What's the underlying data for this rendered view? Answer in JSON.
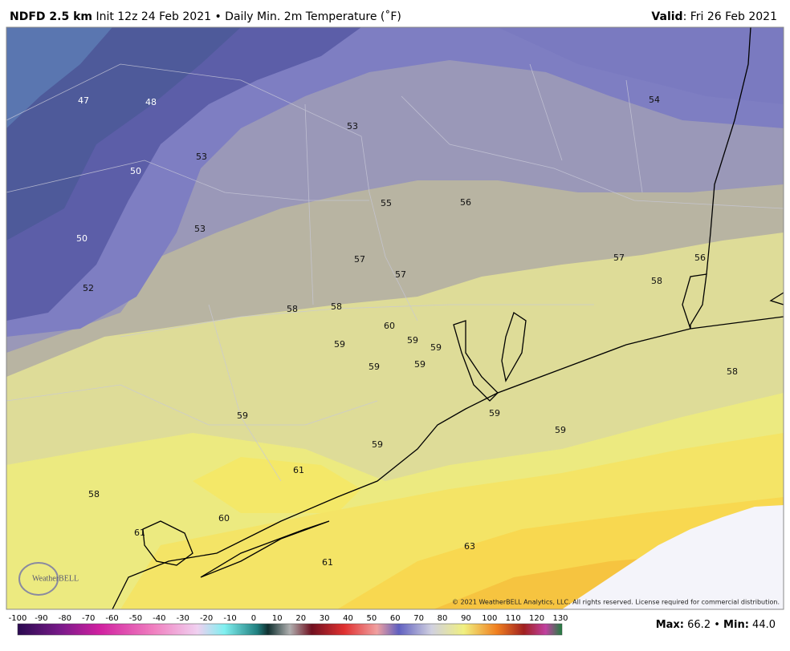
{
  "header": {
    "title_bold": "NDFD 2.5 km",
    "title": "Init 12z 24 Feb 2021 • Daily Min. 2m Temperature (˚F)",
    "valid_label": "Valid",
    "valid": ": Fri 26 Feb 2021"
  },
  "map": {
    "labels": [
      47,
      48,
      53,
      54,
      53,
      50,
      55,
      56,
      53,
      50,
      57,
      57,
      57,
      56,
      58,
      52,
      58,
      58,
      60,
      59,
      59,
      59,
      59,
      59,
      58,
      59,
      59,
      59,
      59,
      61,
      58,
      60,
      61,
      63,
      61
    ],
    "logo": "WeatherBELL",
    "copyright": "© 2021 WeatherBELL Analytics, LLC. All rights reserved. License required for commercial distribution."
  },
  "colorbar": {
    "ticks": [
      -100,
      -90,
      -80,
      -70,
      -60,
      -50,
      -40,
      -30,
      -20,
      -10,
      0,
      10,
      20,
      30,
      40,
      50,
      60,
      70,
      80,
      90,
      100,
      110,
      120,
      130
    ]
  },
  "footer": {
    "max_label": "Max",
    "max": "66.2",
    "separator": "•",
    "min_label": "Min",
    "min": "44.0"
  }
}
